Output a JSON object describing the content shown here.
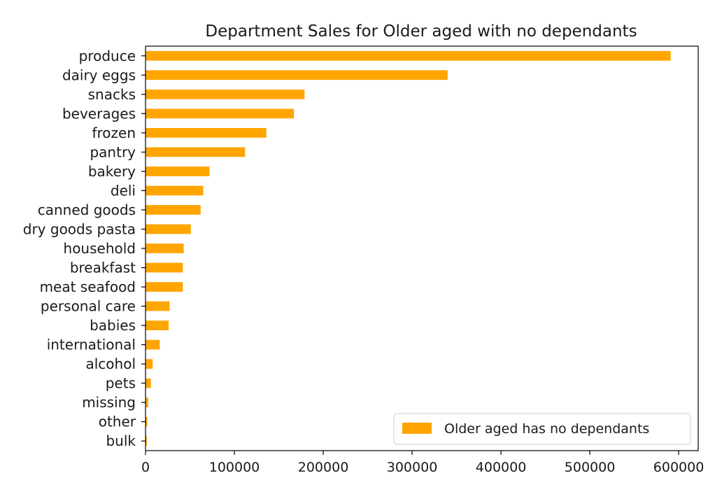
{
  "chart_data": {
    "type": "bar",
    "orientation": "horizontal",
    "title": "Department Sales for Older aged with no dependants",
    "xlabel": "",
    "ylabel": "",
    "categories": [
      "produce",
      "dairy eggs",
      "snacks",
      "beverages",
      "frozen",
      "pantry",
      "bakery",
      "deli",
      "canned goods",
      "dry goods pasta",
      "household",
      "breakfast",
      "meat seafood",
      "personal care",
      "babies",
      "international",
      "alcohol",
      "pets",
      "missing",
      "other",
      "bulk"
    ],
    "series": [
      {
        "name": "Older aged has no dependants",
        "color": "#ffa500",
        "values": [
          591000,
          340000,
          179000,
          167000,
          136000,
          112000,
          72000,
          65000,
          62000,
          51000,
          43000,
          42000,
          42000,
          27000,
          26000,
          16000,
          8000,
          6000,
          3000,
          2000,
          1500
        ]
      }
    ],
    "xlim": [
      0,
      622000
    ],
    "xticks": [
      0,
      100000,
      200000,
      300000,
      400000,
      500000,
      600000
    ],
    "xtick_labels": [
      "0",
      "100000",
      "200000",
      "300000",
      "400000",
      "500000",
      "600000"
    ],
    "grid": false,
    "legend_position": "lower-right"
  }
}
